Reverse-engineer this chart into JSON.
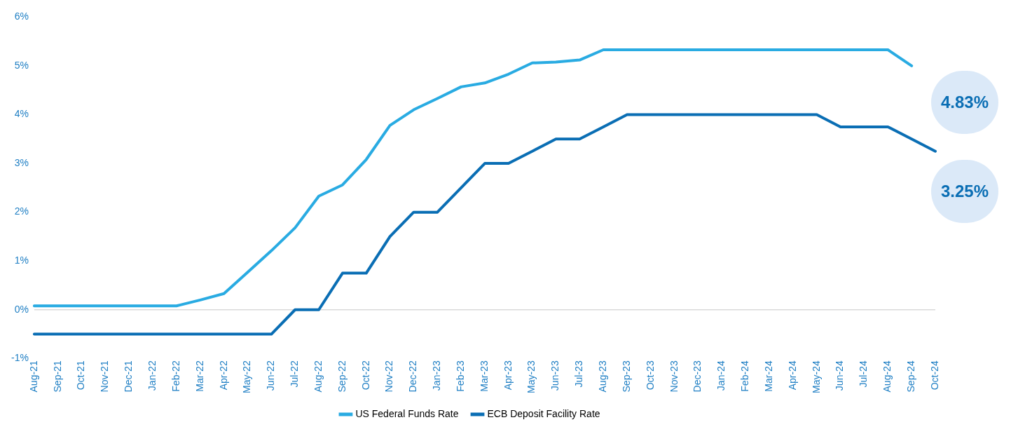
{
  "chart_data": {
    "type": "line",
    "categories": [
      "Aug-21",
      "Sep-21",
      "Oct-21",
      "Nov-21",
      "Dec-21",
      "Jan-22",
      "Feb-22",
      "Mar-22",
      "Apr-22",
      "May-22",
      "Jun-22",
      "Jul-22",
      "Aug-22",
      "Sep-22",
      "Oct-22",
      "Nov-22",
      "Dec-22",
      "Jan-23",
      "Feb-23",
      "Mar-23",
      "Apr-23",
      "May-23",
      "Jun-23",
      "Jul-23",
      "Aug-23",
      "Sep-23",
      "Oct-23",
      "Nov-23",
      "Dec-23",
      "Jan-24",
      "Feb-24",
      "Mar-24",
      "Apr-24",
      "May-24",
      "Jun-24",
      "Jul-24",
      "Aug-24",
      "Sep-24",
      "Oct-24"
    ],
    "series": [
      {
        "name": "US Federal Funds Rate",
        "color": "#29abe2",
        "values": [
          0.08,
          0.08,
          0.08,
          0.08,
          0.08,
          0.08,
          0.08,
          0.2,
          0.33,
          0.77,
          1.21,
          1.68,
          2.33,
          2.56,
          3.08,
          3.78,
          4.1,
          4.33,
          4.57,
          4.65,
          4.83,
          5.06,
          5.08,
          5.12,
          5.33,
          5.33,
          5.33,
          5.33,
          5.33,
          5.33,
          5.33,
          5.33,
          5.33,
          5.33,
          5.33,
          5.33,
          5.33,
          5.0,
          null
        ]
      },
      {
        "name": "ECB Deposit Facility Rate",
        "color": "#0a6eb4",
        "values": [
          -0.5,
          -0.5,
          -0.5,
          -0.5,
          -0.5,
          -0.5,
          -0.5,
          -0.5,
          -0.5,
          -0.5,
          -0.5,
          0,
          0,
          0.75,
          0.75,
          1.5,
          2,
          2,
          2.5,
          3,
          3,
          3.25,
          3.5,
          3.5,
          3.75,
          4,
          4,
          4,
          4,
          4,
          4,
          4,
          4,
          4,
          3.75,
          3.75,
          3.75,
          3.5,
          3.25
        ]
      }
    ],
    "ylim": [
      -1,
      6
    ],
    "yticks": [
      {
        "value": -1,
        "label": "-1%"
      },
      {
        "value": 0,
        "label": "0%"
      },
      {
        "value": 1,
        "label": "1%"
      },
      {
        "value": 2,
        "label": "2%"
      },
      {
        "value": 3,
        "label": "3%"
      },
      {
        "value": 4,
        "label": "4%"
      },
      {
        "value": 5,
        "label": "5%"
      },
      {
        "value": 6,
        "label": "6%"
      }
    ],
    "grid": false,
    "ref_lines": [
      {
        "axis": "y",
        "value": 0,
        "color": "#d9d9d9"
      }
    ],
    "annotations": [
      "4.83%",
      "3.25%"
    ],
    "legend": "bottom",
    "marker": "none",
    "line_style": "solid"
  }
}
